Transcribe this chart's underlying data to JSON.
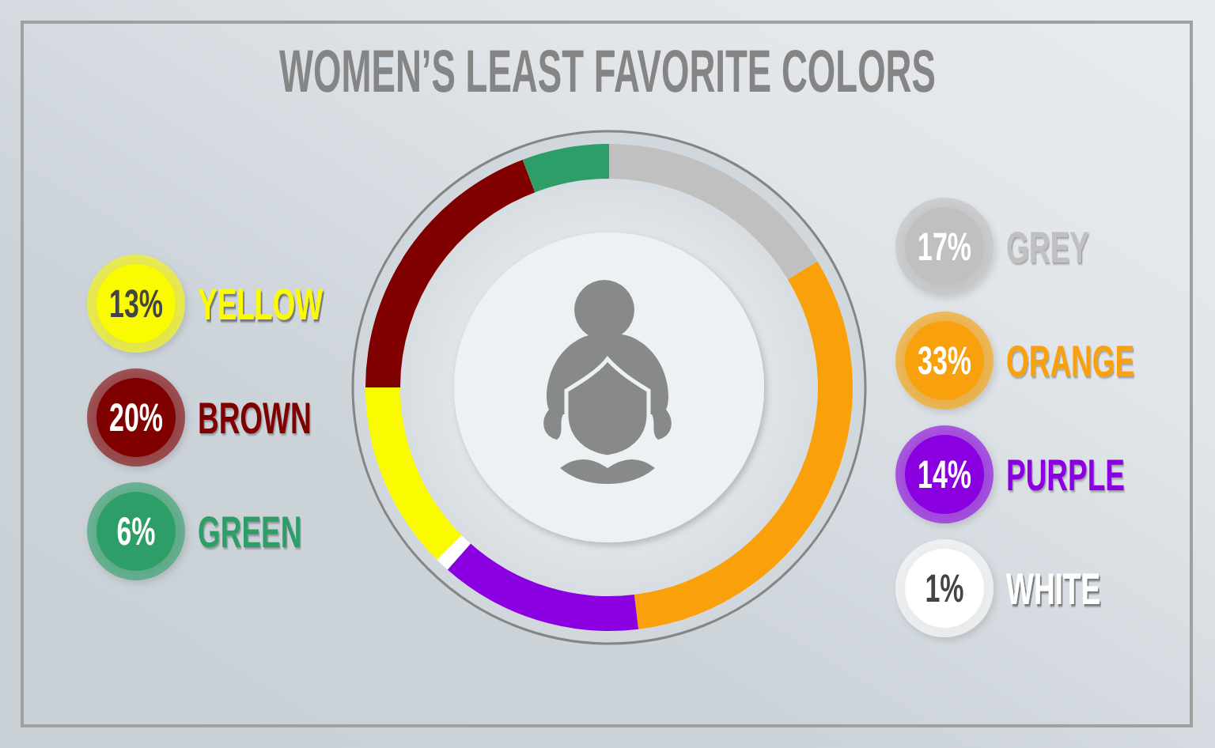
{
  "chart_data": {
    "type": "donut",
    "title": "WOMEN’S LEAST FAVORITE COLORS",
    "categories": [
      "GREY",
      "ORANGE",
      "PURPLE",
      "WHITE",
      "YELLOW",
      "BROWN",
      "GREEN"
    ],
    "values": [
      17,
      33,
      14,
      1,
      13,
      20,
      6
    ],
    "colors": [
      "#c0c0c0",
      "#f9a00a",
      "#8b00e0",
      "#ffffff",
      "#fafa00",
      "#800000",
      "#2e9e68"
    ],
    "value_labels": [
      "17%",
      "33%",
      "14%",
      "1%",
      "13%",
      "20%",
      "6%"
    ],
    "legend": "right"
  }
}
